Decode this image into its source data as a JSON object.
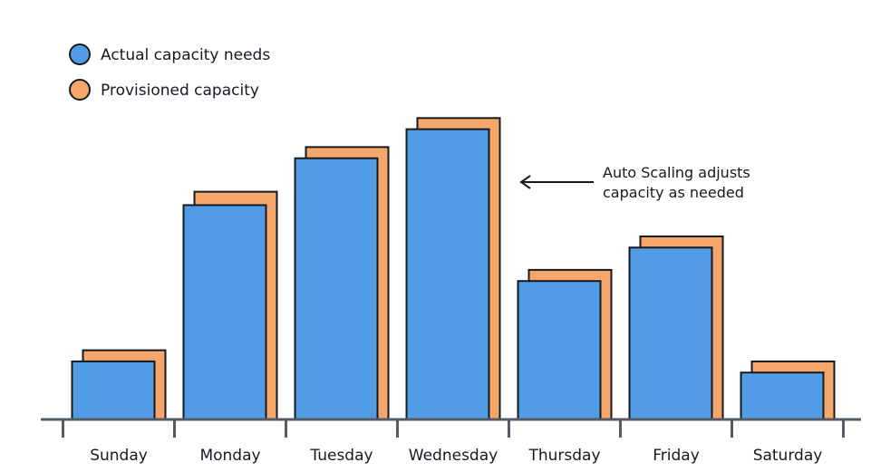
{
  "chart_data": {
    "type": "bar",
    "categories": [
      "Sunday",
      "Monday",
      "Tuesday",
      "Wednesday",
      "Thursday",
      "Friday",
      "Saturday"
    ],
    "series": [
      {
        "name": "Actual capacity needs",
        "values": [
          26,
          96,
          117,
          130,
          62,
          77,
          21
        ]
      },
      {
        "name": "Provisioned capacity",
        "values": [
          31,
          102,
          122,
          135,
          67,
          82,
          26
        ]
      }
    ],
    "title": "",
    "xlabel": "",
    "ylabel": "",
    "ylim": [
      0,
      140
    ],
    "grid": false,
    "legend": "top-left",
    "annotation": {
      "lines": [
        "Auto Scaling adjusts",
        "capacity as needed"
      ],
      "points_to": "Wednesday"
    },
    "colors": {
      "actual": "#529ce5",
      "provisioned": "#f5a76b",
      "outline": "#16191f",
      "axis": "#545b64"
    }
  }
}
